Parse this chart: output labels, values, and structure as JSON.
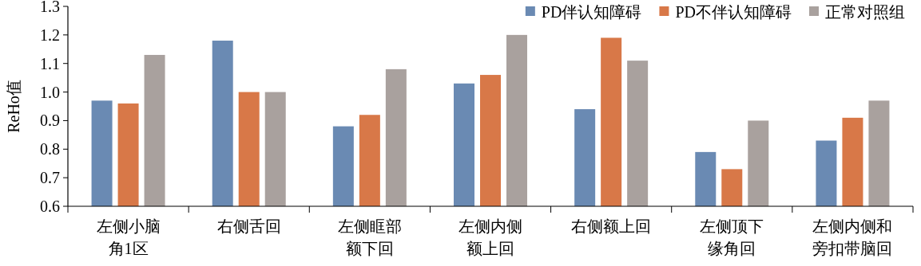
{
  "chart_data": {
    "type": "bar",
    "ylabel": "ReHo值",
    "categories": [
      "左侧小脑角1区",
      "右侧舌回",
      "左侧眶部额下回",
      "左侧内侧额上回",
      "右侧额上回",
      "左侧顶下缘角回",
      "左侧内侧和旁扣带脑回"
    ],
    "series": [
      {
        "name": "PD伴认知障碍",
        "color": "#6a8ab3",
        "values": [
          0.97,
          1.18,
          0.88,
          1.03,
          0.94,
          0.79,
          0.83
        ]
      },
      {
        "name": "PD不伴认知障碍",
        "color": "#d87848",
        "values": [
          0.96,
          1.0,
          0.92,
          1.06,
          1.19,
          0.73,
          0.91
        ]
      },
      {
        "name": "正常对照组",
        "color": "#a9a19e",
        "values": [
          1.13,
          1.0,
          1.08,
          1.2,
          1.11,
          0.9,
          0.97
        ]
      }
    ],
    "ylim": [
      0.6,
      1.3
    ],
    "yticks": [
      {
        "value": 0.6,
        "label": "0.6"
      },
      {
        "value": 0.7,
        "label": "0.7"
      },
      {
        "value": 0.8,
        "label": "0.8"
      },
      {
        "value": 0.9,
        "label": "0.9"
      },
      {
        "value": 1.0,
        "label": "1.0"
      },
      {
        "value": 1.1,
        "label": "1.1"
      },
      {
        "value": 1.2,
        "label": "1.2"
      },
      {
        "value": 1.3,
        "label": "1.3"
      }
    ],
    "legend": "top right",
    "grid": false
  }
}
